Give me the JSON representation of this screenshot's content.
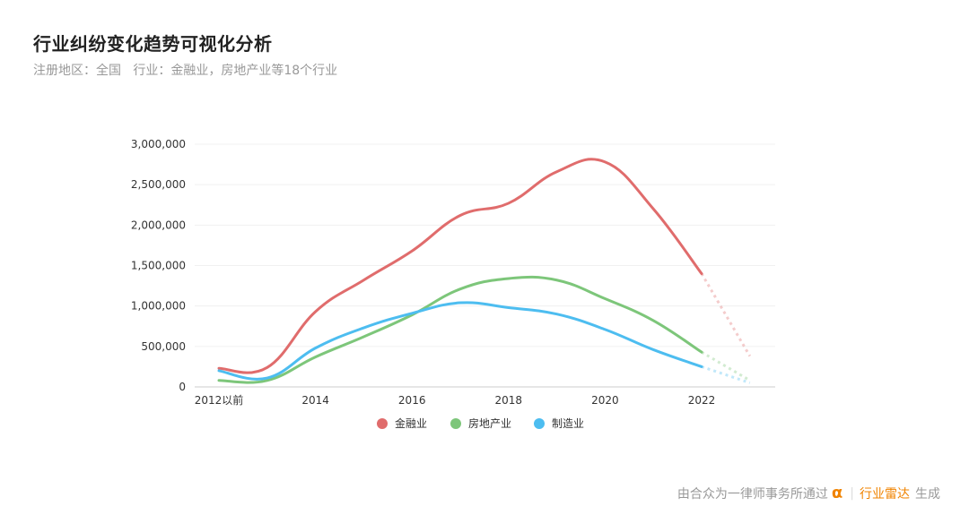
{
  "header": {
    "title": "行业纠纷变化趋势可视化分析",
    "subtitle": "注册地区：全国   行业：金融业，房地产业等18个行业"
  },
  "footer": {
    "prefix": "由合众为一律师事务所通过",
    "brand_mark": "α",
    "brand": "行业雷达",
    "suffix": "生成"
  },
  "chart_data": {
    "type": "line",
    "x": [
      "2012以前",
      "2013",
      "2014",
      "2015",
      "2016",
      "2017",
      "2018",
      "2019",
      "2020",
      "2021",
      "2022",
      "2023"
    ],
    "x_tick_labels": [
      "2012以前",
      "2014",
      "2016",
      "2018",
      "2020",
      "2022"
    ],
    "ylim": [
      0,
      3000000
    ],
    "y_ticks": [
      0,
      500000,
      1000000,
      1500000,
      2000000,
      2500000,
      3000000
    ],
    "y_tick_labels": [
      "0",
      "500,000",
      "1,000,000",
      "1,500,000",
      "2,000,000",
      "2,500,000",
      "3,000,000"
    ],
    "grid": true,
    "legend_position": "bottom",
    "projected_from": "2022",
    "series": [
      {
        "name": "金融业",
        "color": "#e06c6c",
        "values": [
          230000,
          240000,
          930000,
          1320000,
          1680000,
          2120000,
          2270000,
          2660000,
          2780000,
          2200000,
          1400000,
          380000
        ]
      },
      {
        "name": "房地产业",
        "color": "#7dc67a",
        "values": [
          80000,
          80000,
          370000,
          620000,
          890000,
          1210000,
          1340000,
          1320000,
          1090000,
          820000,
          430000,
          80000
        ]
      },
      {
        "name": "制造业",
        "color": "#4dbdf0",
        "values": [
          200000,
          110000,
          480000,
          730000,
          910000,
          1040000,
          980000,
          900000,
          710000,
          460000,
          250000,
          50000
        ]
      }
    ]
  }
}
